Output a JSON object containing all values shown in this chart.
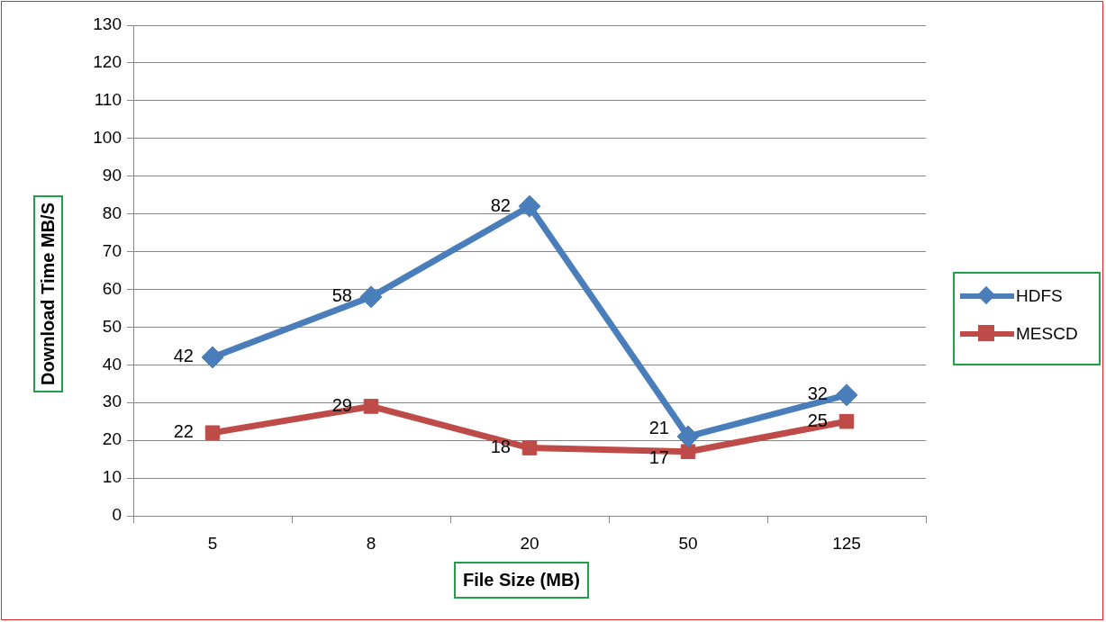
{
  "chart_data": {
    "type": "line",
    "xlabel": "File Size (MB)",
    "ylabel": "Download Time MB/S",
    "categories": [
      "5",
      "8",
      "20",
      "50",
      "125"
    ],
    "series": [
      {
        "name": "HDFS",
        "color": "#4a7ebb",
        "marker": "diamond",
        "values": [
          42,
          58,
          82,
          21,
          32
        ]
      },
      {
        "name": "MESCD",
        "color": "#be4b48",
        "marker": "square",
        "values": [
          22,
          29,
          18,
          17,
          25
        ]
      }
    ],
    "ylim": [
      0,
      130
    ],
    "yticks": [
      0,
      10,
      20,
      30,
      40,
      50,
      60,
      70,
      80,
      90,
      100,
      110,
      120,
      130
    ],
    "grid": "y",
    "legend": "right",
    "data_labels": true,
    "line_style": "solid"
  }
}
